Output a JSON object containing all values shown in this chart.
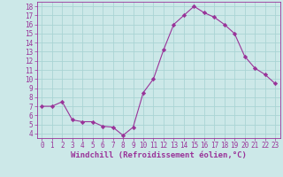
{
  "x": [
    0,
    1,
    2,
    3,
    4,
    5,
    6,
    7,
    8,
    9,
    10,
    11,
    12,
    13,
    14,
    15,
    16,
    17,
    18,
    19,
    20,
    21,
    22,
    23
  ],
  "y": [
    7.0,
    7.0,
    7.5,
    5.5,
    5.3,
    5.3,
    4.8,
    4.7,
    3.8,
    4.7,
    8.5,
    10.0,
    13.2,
    16.0,
    17.0,
    18.0,
    17.3,
    16.8,
    16.0,
    15.0,
    12.5,
    11.2,
    10.5,
    9.5
  ],
  "line_color": "#993399",
  "marker": "D",
  "marker_size": 2.2,
  "xlabel": "Windchill (Refroidissement éolien,°C)",
  "xlim": [
    -0.5,
    23.5
  ],
  "ylim": [
    3.5,
    18.5
  ],
  "yticks": [
    4,
    5,
    6,
    7,
    8,
    9,
    10,
    11,
    12,
    13,
    14,
    15,
    16,
    17,
    18
  ],
  "xticks": [
    0,
    1,
    2,
    3,
    4,
    5,
    6,
    7,
    8,
    9,
    10,
    11,
    12,
    13,
    14,
    15,
    16,
    17,
    18,
    19,
    20,
    21,
    22,
    23
  ],
  "background_color": "#cce8e8",
  "grid_color": "#aad4d4",
  "tick_color": "#993399",
  "label_color": "#993399",
  "xlabel_fontsize": 6.5,
  "tick_fontsize": 5.5
}
